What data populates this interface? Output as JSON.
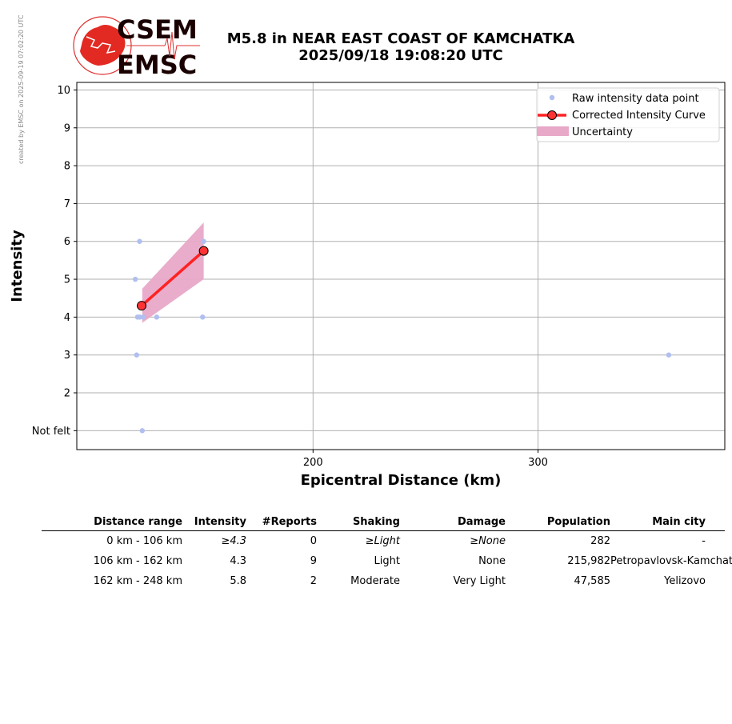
{
  "watermark": "created by EMSC on 2025-09-19 07:02:20 UTC",
  "logo": {
    "top_text": "CSEM",
    "bottom_text": "EMSC"
  },
  "title": {
    "line1": "M5.8 in NEAR EAST COAST OF KAMCHATKA",
    "line2": "2025/09/18 19:08:20 UTC"
  },
  "colors": {
    "raw_points": "#b0bff0",
    "curve": "#ff2222",
    "curve_marker": "#ff3333",
    "uncertainty": "#e8a8c8",
    "grid": "#b0b0b0"
  },
  "chart_data": {
    "type": "scatter",
    "xlabel": "Epicentral Distance (km)",
    "ylabel": "Intensity",
    "xlim": [
      95,
      383
    ],
    "ylim": [
      0.5,
      10.2
    ],
    "xticks": [
      200,
      300
    ],
    "yticks": [
      1,
      2,
      3,
      4,
      5,
      6,
      7,
      8,
      9,
      10
    ],
    "ytick_labels": [
      "Not felt",
      "2",
      "3",
      "4",
      "5",
      "6",
      "7",
      "8",
      "9",
      "10"
    ],
    "grid": true,
    "legend_position": "top-right",
    "legend": [
      "Raw intensity data point",
      "Corrected Intensity Curve",
      "Uncertainty"
    ],
    "raw_points": [
      {
        "x": 122.9,
        "y": 6
      },
      {
        "x": 121.0,
        "y": 5
      },
      {
        "x": 122.0,
        "y": 4
      },
      {
        "x": 123.0,
        "y": 4
      },
      {
        "x": 124.5,
        "y": 4
      },
      {
        "x": 130.5,
        "y": 4
      },
      {
        "x": 121.6,
        "y": 3
      },
      {
        "x": 124.1,
        "y": 1
      },
      {
        "x": 151.4,
        "y": 6
      },
      {
        "x": 150.9,
        "y": 4
      },
      {
        "x": 358.1,
        "y": 3
      }
    ],
    "corrected_curve": [
      {
        "x": 123.8,
        "y": 4.3
      },
      {
        "x": 151.4,
        "y": 5.75
      }
    ],
    "uncertainty": {
      "x": [
        124.1,
        151.4
      ],
      "lower": [
        3.85,
        5.0
      ],
      "upper": [
        4.75,
        6.5
      ]
    }
  },
  "table": {
    "headers": [
      "Distance range",
      "Intensity",
      "#Reports",
      "Shaking",
      "Damage",
      "Population",
      "Main city"
    ],
    "rows": [
      {
        "range": "0 km -  106 km",
        "intensity": "≥4.3",
        "reports": "0",
        "shaking": "≥Light",
        "damage": "≥None",
        "population": "282",
        "city": "-"
      },
      {
        "range": "106 km -  162 km",
        "intensity": "4.3",
        "reports": "9",
        "shaking": "Light",
        "damage": "None",
        "population": "215,982",
        "city": "Petropavlovsk-Kamchatsky"
      },
      {
        "range": "162 km -  248 km",
        "intensity": "5.8",
        "reports": "2",
        "shaking": "Moderate",
        "damage": "Very Light",
        "population": "47,585",
        "city": "Yelizovo"
      }
    ]
  }
}
